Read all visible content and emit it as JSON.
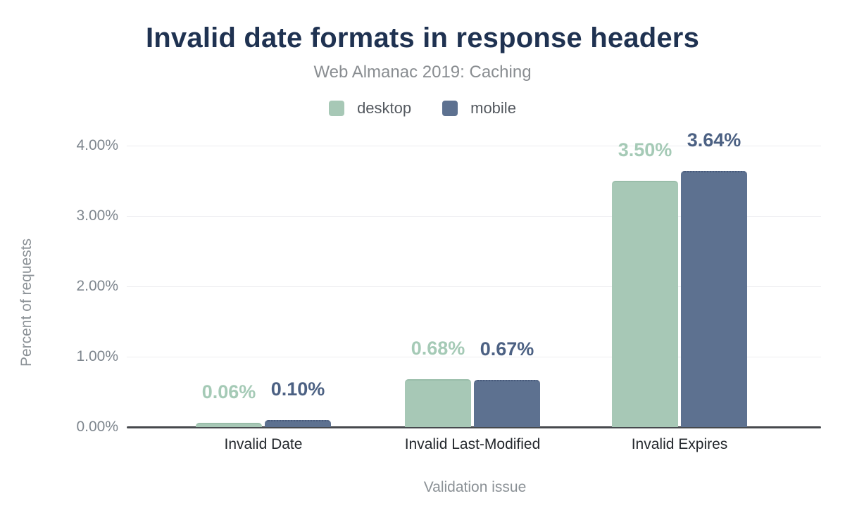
{
  "chart_data": {
    "type": "bar",
    "title": "Invalid date formats in response headers",
    "subtitle": "Web Almanac 2019: Caching",
    "categories": [
      "Invalid Date",
      "Invalid Last-Modified",
      "Invalid Expires"
    ],
    "series": [
      {
        "name": "desktop",
        "color": "#a7c8b6",
        "label_color": "#a5cab6",
        "values": [
          0.06,
          0.68,
          3.5
        ],
        "labels": [
          "0.06%",
          "0.68%",
          "3.50%"
        ]
      },
      {
        "name": "mobile",
        "color": "#5d7190",
        "label_color": "#4c6183",
        "values": [
          0.1,
          0.67,
          3.64
        ],
        "labels": [
          "0.10%",
          "0.67%",
          "3.64%"
        ]
      }
    ],
    "xlabel": "Validation issue",
    "ylabel": "Percent of requests",
    "ylim": [
      0,
      4
    ],
    "yticks": [
      "0.00%",
      "1.00%",
      "2.00%",
      "3.00%",
      "4.00%"
    ],
    "grid": true,
    "legend_position": "top",
    "background_color": "#ffffff",
    "title_color": "#1f3251",
    "subtitle_color": "#898d91"
  }
}
